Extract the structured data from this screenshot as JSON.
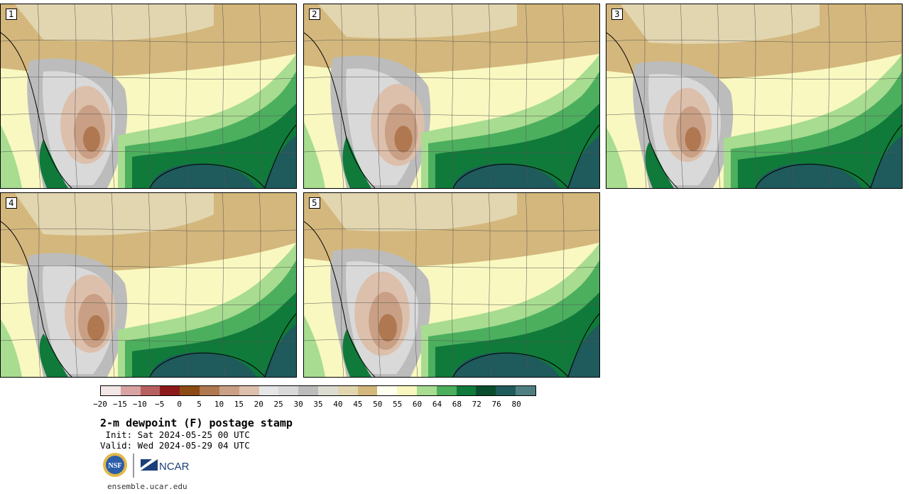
{
  "panels": [
    {
      "label": "1"
    },
    {
      "label": "2"
    },
    {
      "label": "3"
    },
    {
      "label": "4"
    },
    {
      "label": "5"
    }
  ],
  "colorbar": {
    "colors": [
      "#f2e6e6",
      "#d9a3a3",
      "#b86060",
      "#8c1a1a",
      "#8c4a14",
      "#b07850",
      "#c9a085",
      "#dcc0ac",
      "#e6e6e6",
      "#d9d9d9",
      "#bcbcbc",
      "#dcdcd0",
      "#e2d6b0",
      "#d4b77c",
      "#fffff0",
      "#f8f8c0",
      "#a8dc90",
      "#4caf5e",
      "#107a3a",
      "#0a4d2e",
      "#1f5a5c",
      "#4f7f80"
    ],
    "ticks": [
      "−20",
      "−15",
      "−10",
      "−5",
      "0",
      "5",
      "10",
      "15",
      "20",
      "25",
      "30",
      "35",
      "40",
      "45",
      "50",
      "55",
      "60",
      "64",
      "68",
      "72",
      "76",
      "80"
    ]
  },
  "title": "2-m dewpoint (F) postage stamp",
  "init": " Init: Sat 2024-05-25 00 UTC",
  "valid": "Valid: Wed 2024-05-29 04 UTC",
  "logo": {
    "nsf": "NSF",
    "ncar": "NCAR"
  },
  "url": "ensemble.ucar.edu"
}
